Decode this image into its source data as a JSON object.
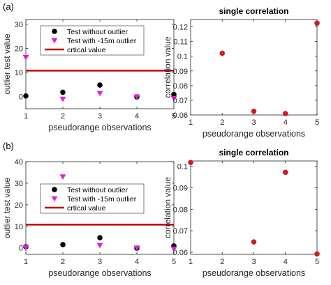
{
  "panel_labels": [
    "(a)",
    "(b)"
  ],
  "chart_data": [
    {
      "type": "scatter",
      "panel": "(a)",
      "title": "",
      "xlabel": "pseudorange observations",
      "ylabel": "outlier test value",
      "xlim": [
        1,
        5
      ],
      "ylim": [
        -5,
        32
      ],
      "xticks": [
        1,
        2,
        3,
        4,
        5
      ],
      "yticks": [
        0,
        10,
        20,
        30
      ],
      "grid": false,
      "legend_position": "top",
      "series": [
        {
          "name": "Test without outlier",
          "marker": "circle",
          "color": "#000000",
          "x": [
            1,
            2,
            3,
            4,
            5
          ],
          "y": [
            0.3,
            1.8,
            4.8,
            -0.1,
            0.9
          ]
        },
        {
          "name": "Test with -15m outlier",
          "marker": "triangle-down",
          "color": "#e020e0",
          "x": [
            1,
            2,
            3,
            4,
            5
          ],
          "y": [
            16.3,
            -1.0,
            1.4,
            0.0,
            -0.7
          ]
        }
      ],
      "reference_lines": [
        {
          "name": "crtical value",
          "y": 10.8,
          "color": "#c00000"
        }
      ]
    },
    {
      "type": "scatter",
      "panel": "(a)",
      "title": "single correlation",
      "xlabel": "pseudorange observations",
      "ylabel": "correlation value",
      "xlim": [
        1,
        5
      ],
      "ylim": [
        0.06,
        0.125
      ],
      "xticks": [
        1,
        2,
        3,
        4,
        5
      ],
      "yticks": [
        0.06,
        0.07,
        0.08,
        0.09,
        0.1,
        0.11,
        0.12
      ],
      "grid": false,
      "series": [
        {
          "name": "",
          "marker": "circle",
          "color": "#cc2020",
          "x": [
            2,
            3,
            4,
            5
          ],
          "y": [
            0.102,
            0.0625,
            0.061,
            0.1225
          ]
        }
      ]
    },
    {
      "type": "scatter",
      "panel": "(b)",
      "title": "",
      "xlabel": "pseudorange observations",
      "ylabel": "outlier test value",
      "xlim": [
        1,
        5
      ],
      "ylim": [
        -3,
        40
      ],
      "xticks": [
        1,
        2,
        3,
        4,
        5
      ],
      "yticks": [
        0,
        10,
        20,
        30,
        40
      ],
      "grid": false,
      "legend_position": "center-right",
      "series": [
        {
          "name": "Test without outlier",
          "marker": "circle",
          "color": "#000000",
          "x": [
            1,
            2,
            3,
            4,
            5
          ],
          "y": [
            0.5,
            1.5,
            4.7,
            -0.1,
            0.9
          ]
        },
        {
          "name": "Test with -15m outlier",
          "marker": "triangle-down",
          "color": "#e020e0",
          "x": [
            1,
            2,
            3,
            4,
            5
          ],
          "y": [
            0.2,
            33.0,
            1.2,
            0.0,
            -0.5
          ]
        }
      ],
      "reference_lines": [
        {
          "name": "crtical value",
          "y": 10.8,
          "color": "#c00000"
        }
      ]
    },
    {
      "type": "scatter",
      "panel": "(b)",
      "title": "single correlation",
      "xlabel": "pseudorange observations",
      "ylabel": "correlation value",
      "xlim": [
        1,
        5
      ],
      "ylim": [
        0.059,
        0.1025
      ],
      "xticks": [
        1,
        2,
        3,
        4,
        5
      ],
      "yticks": [
        0.06,
        0.07,
        0.08,
        0.09,
        0.1
      ],
      "grid": false,
      "series": [
        {
          "name": "",
          "marker": "circle",
          "color": "#cc2020",
          "x": [
            1,
            3,
            4,
            5
          ],
          "y": [
            0.1018,
            0.0648,
            0.0972,
            0.0592
          ]
        }
      ]
    }
  ]
}
